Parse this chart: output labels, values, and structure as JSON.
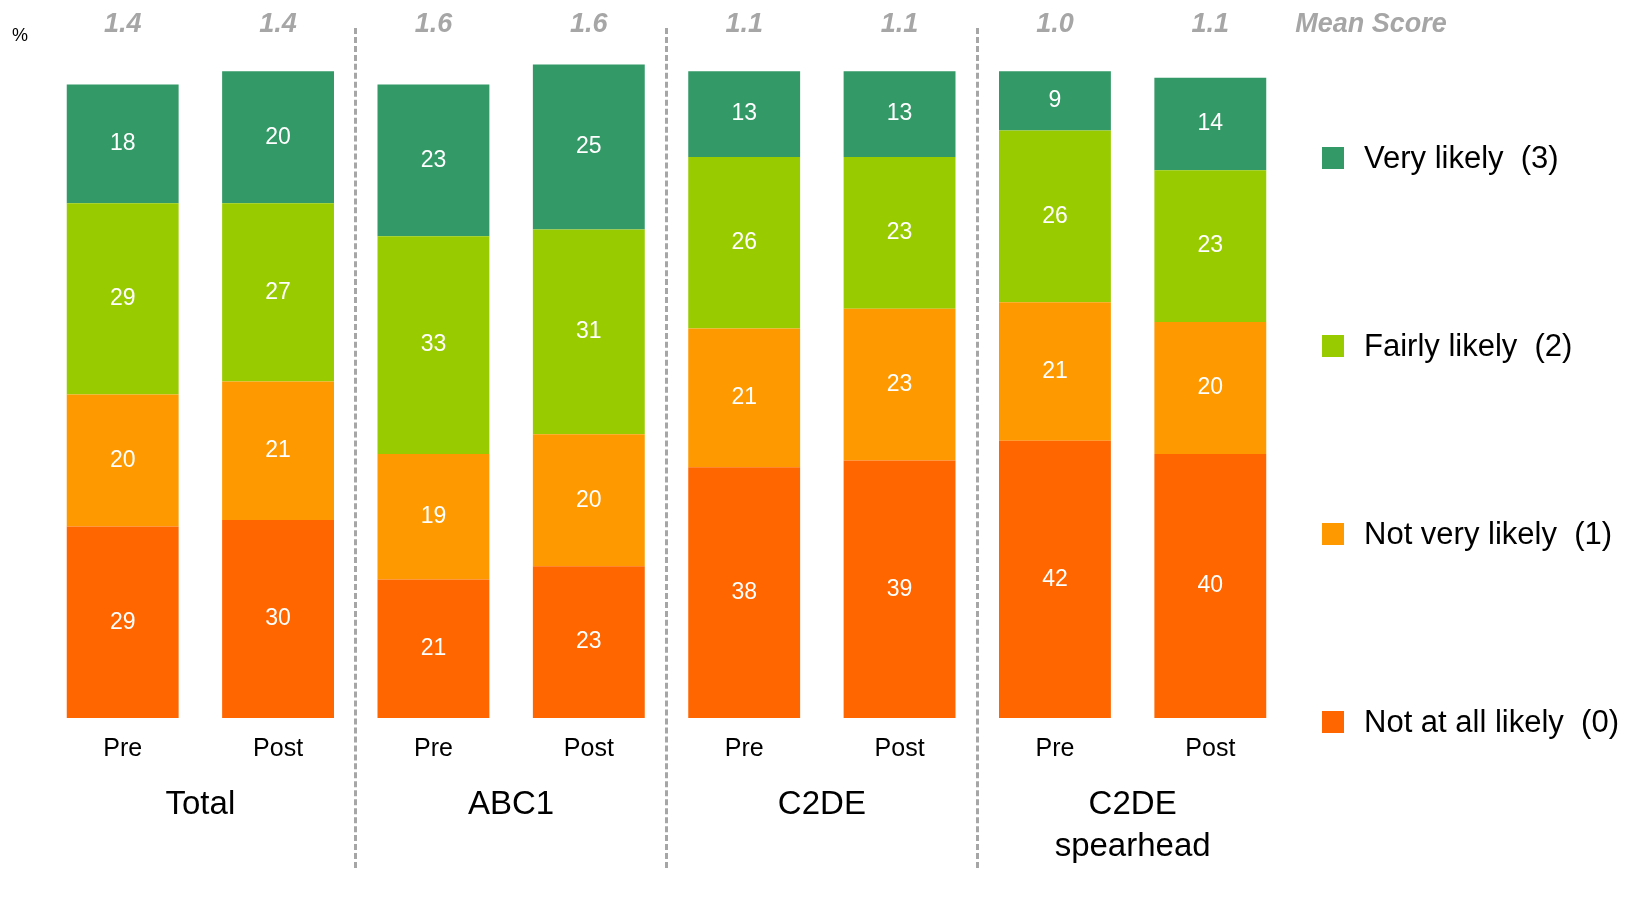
{
  "chart_data": {
    "type": "bar",
    "stacked": true,
    "ylabel": "%",
    "categories": [
      "Pre",
      "Post",
      "Pre",
      "Post",
      "Pre",
      "Post",
      "Pre",
      "Post"
    ],
    "series": [
      {
        "name": "Not at all likely  (0)",
        "color": "#ff6600",
        "values": [
          29,
          30,
          21,
          23,
          38,
          39,
          42,
          40
        ]
      },
      {
        "name": "Not very likely  (1)",
        "color": "#ff9900",
        "values": [
          20,
          21,
          19,
          20,
          21,
          23,
          21,
          20
        ]
      },
      {
        "name": "Fairly likely  (2)",
        "color": "#99cc00",
        "values": [
          29,
          27,
          33,
          31,
          26,
          23,
          26,
          23
        ]
      },
      {
        "name": "Very likely  (3)",
        "color": "#339966",
        "values": [
          18,
          20,
          23,
          25,
          13,
          13,
          9,
          14
        ]
      }
    ],
    "data_labels": true,
    "legend": "right",
    "grid": false,
    "tick_labels": "x",
    "annotations": [
      "1.4",
      "1.4",
      "1.6",
      "1.6",
      "1.1",
      "1.1",
      "1.0",
      "1.1",
      "Mean Score",
      "Total",
      "ABC1",
      "C2DE",
      "C2DE spearhead"
    ]
  }
}
